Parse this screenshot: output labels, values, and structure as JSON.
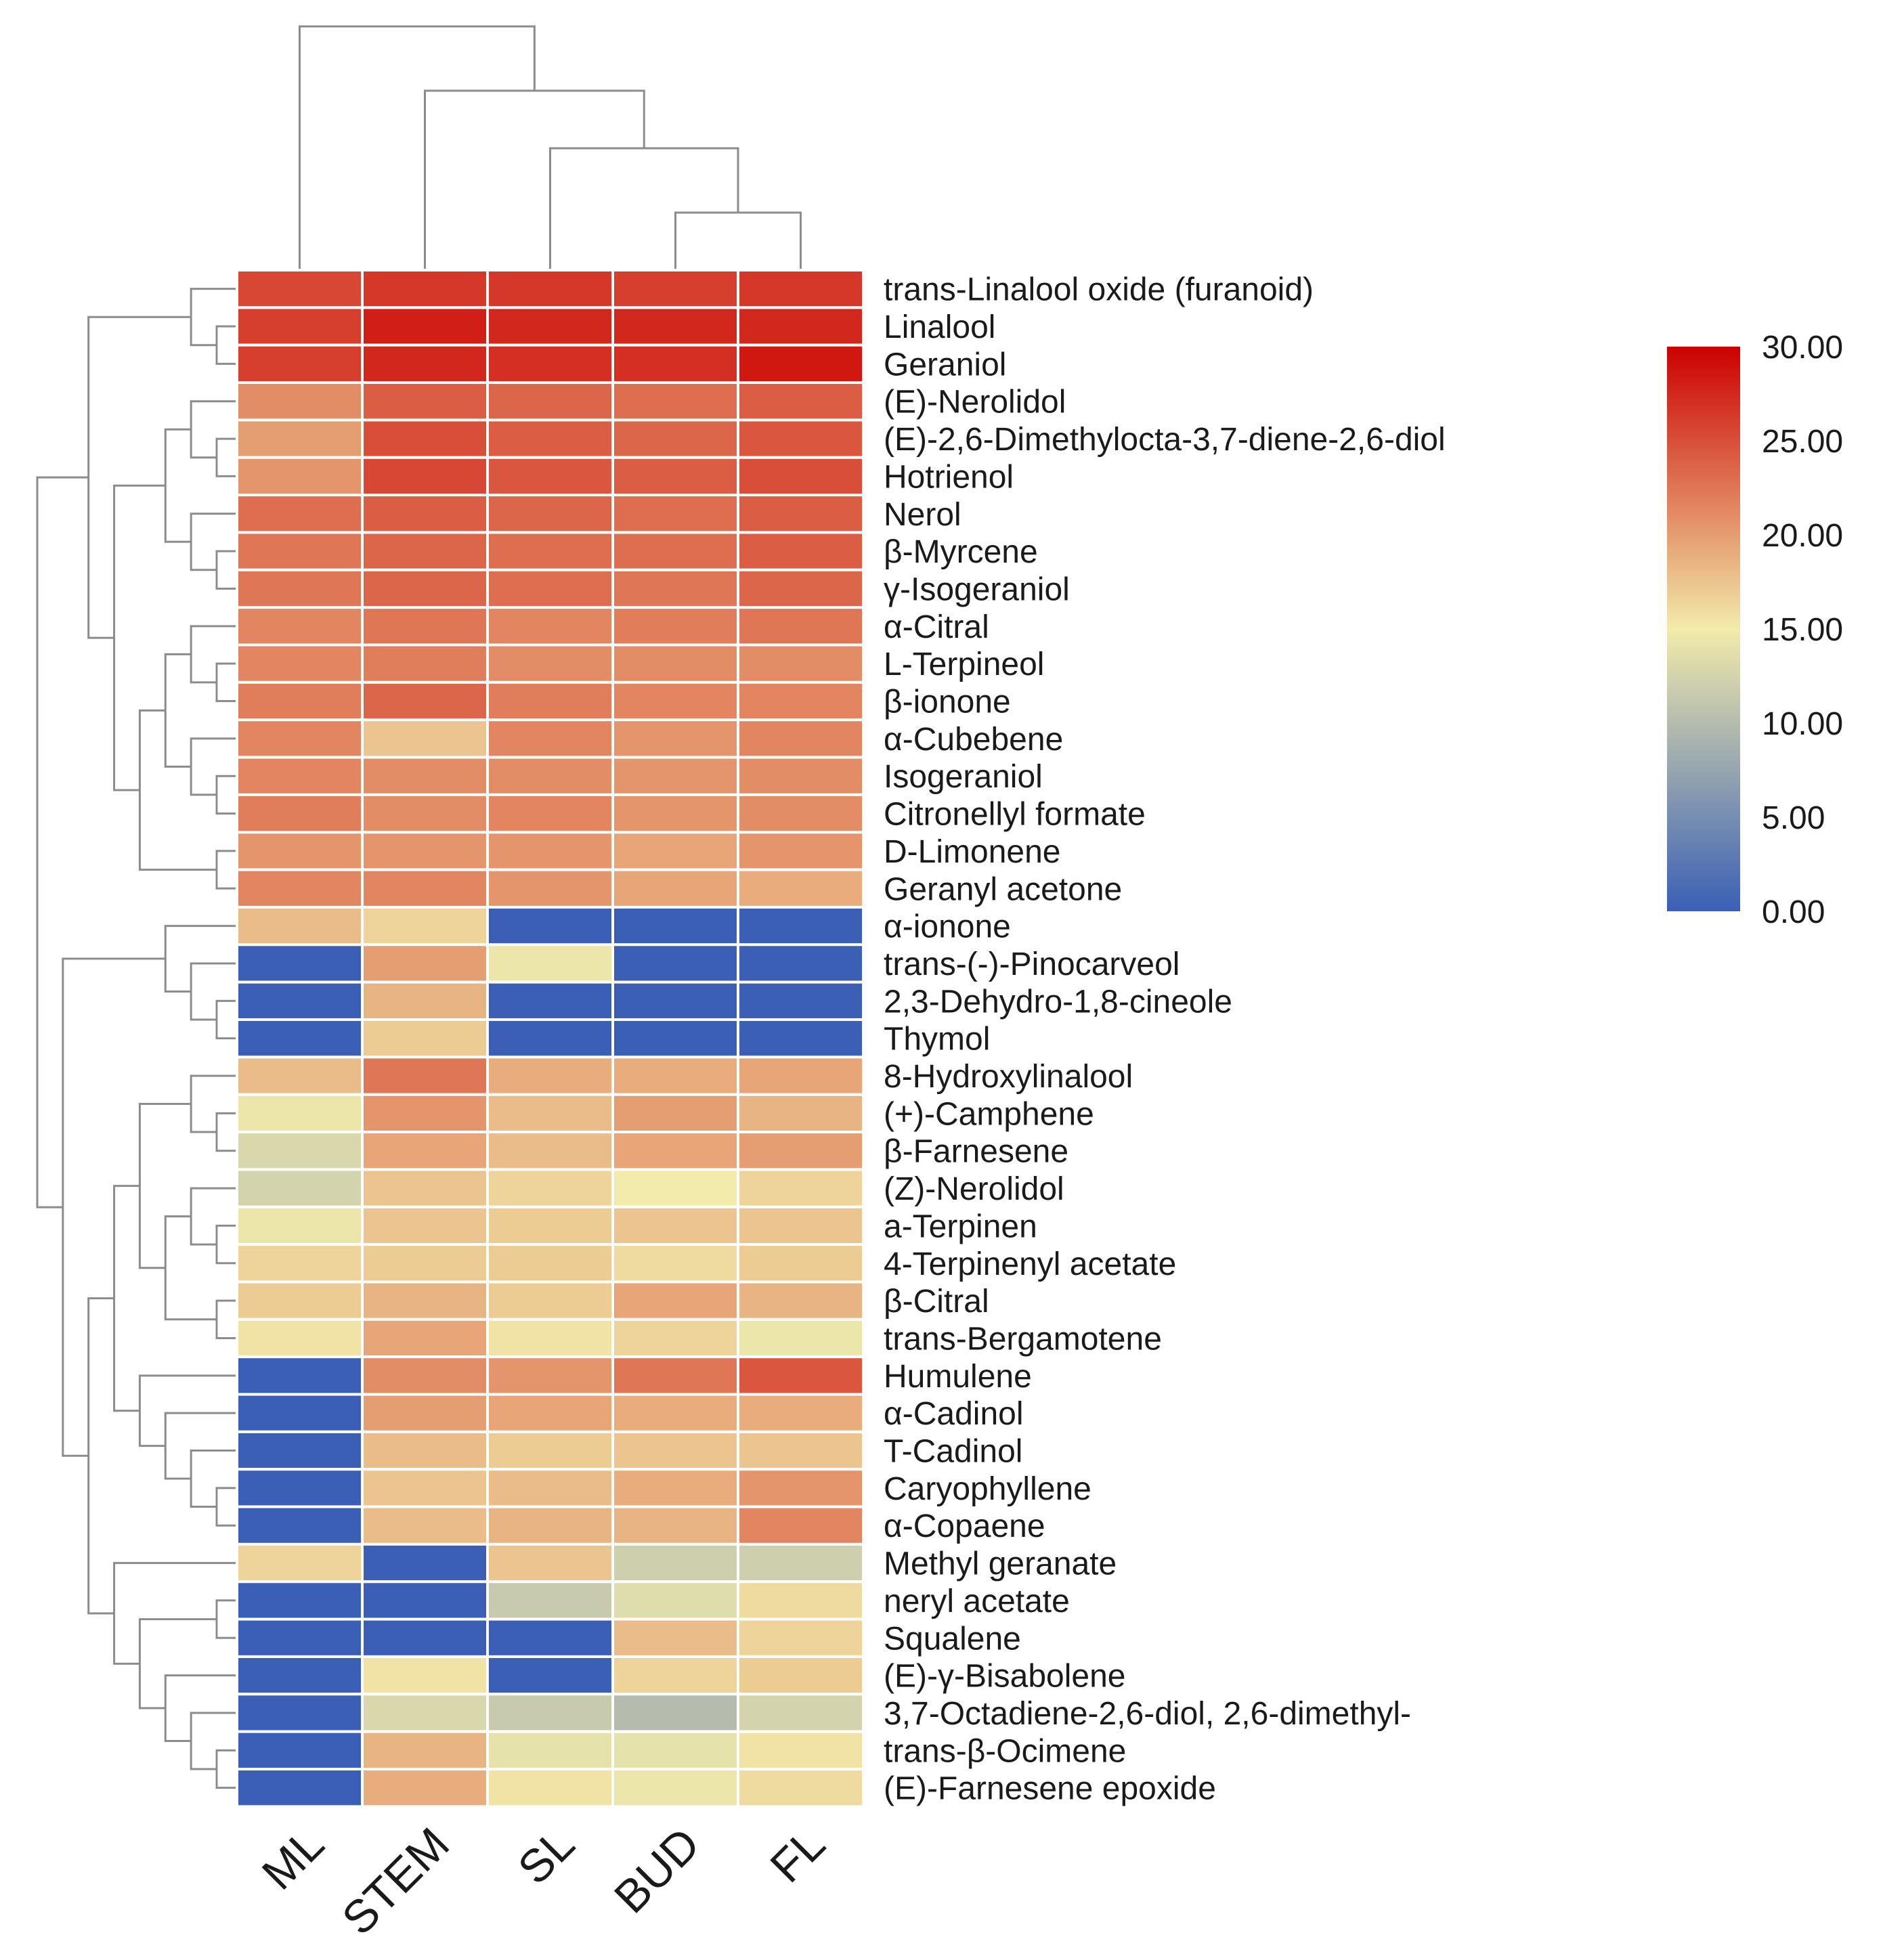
{
  "chart_data": {
    "type": "heatmap",
    "title": "",
    "columns": [
      "ML",
      "STEM",
      "SL",
      "BUD",
      "FL"
    ],
    "rows": [
      "trans-Linalool oxide (furanoid)",
      "Linalool",
      "Geraniol",
      "(E)-Nerolidol",
      "(E)-2,6-Dimethylocta-3,7-diene-2,6-diol",
      "Hotrienol",
      "Nerol",
      "β-Myrcene",
      "γ-Isogeraniol",
      "α-Citral",
      "L-Terpineol",
      "β-ionone",
      "α-Cubebene",
      "Isogeraniol",
      "Citronellyl formate",
      "D-Limonene",
      "Geranyl acetone",
      "α-ionone",
      "trans-(-)-Pinocarveol",
      "2,3-Dehydro-1,8-cineole",
      "Thymol",
      "8-Hydroxylinalool",
      "(+)-Camphene",
      "β-Farnesene",
      "(Z)-Nerolidol",
      "a-Terpinen",
      "4-Terpinenyl acetate",
      "β-Citral",
      "trans-Bergamotene",
      "Humulene",
      "α-Cadinol",
      "T-Cadinol",
      "Caryophyllene",
      "α-Copaene",
      "Methyl geranate",
      "neryl acetate",
      "Squalene",
      "(E)-γ-Bisabolene",
      "3,7-Octadiene-2,6-diol, 2,6-dimethyl-",
      "trans-β-Ocimene",
      "(E)-Farnesene epoxide"
    ],
    "values": [
      [
        25.5,
        26.5,
        26.5,
        26,
        26.5
      ],
      [
        26,
        28,
        27.5,
        27.5,
        27.5
      ],
      [
        26,
        27.5,
        27,
        27,
        28.5
      ],
      [
        21,
        24,
        23.5,
        23,
        24
      ],
      [
        20,
        25,
        24,
        23.5,
        24.5
      ],
      [
        20.5,
        25.5,
        24.5,
        24,
        25
      ],
      [
        23,
        24,
        23.5,
        23,
        24
      ],
      [
        22.5,
        23.5,
        23,
        23,
        24
      ],
      [
        22.5,
        23.5,
        23,
        22.5,
        23.5
      ],
      [
        21.5,
        22.5,
        21.5,
        22,
        22.5
      ],
      [
        21.5,
        22,
        21,
        21,
        21
      ],
      [
        22,
        23.5,
        22,
        21.5,
        21.5
      ],
      [
        21.5,
        17.5,
        21.5,
        20.5,
        21.5
      ],
      [
        21.5,
        21,
        21,
        20.5,
        21
      ],
      [
        22,
        21,
        21.5,
        20.5,
        21
      ],
      [
        20.5,
        20.5,
        20.5,
        19.5,
        20.5
      ],
      [
        21.5,
        21.5,
        20.5,
        19.5,
        19
      ],
      [
        18,
        16.5,
        0,
        0,
        0
      ],
      [
        0,
        20,
        14.5,
        0,
        0
      ],
      [
        0,
        18.5,
        0,
        0,
        0
      ],
      [
        0,
        17,
        0,
        0,
        0
      ],
      [
        18,
        22.5,
        19,
        19,
        19.5
      ],
      [
        14.5,
        20.5,
        18,
        20,
        18.5
      ],
      [
        13,
        19.5,
        18,
        19.5,
        20
      ],
      [
        12.5,
        17.5,
        16.5,
        15,
        16.5
      ],
      [
        14.5,
        17.5,
        17,
        17.5,
        17.5
      ],
      [
        16.5,
        17,
        17,
        16,
        17
      ],
      [
        17,
        18.5,
        17,
        19.5,
        18.5
      ],
      [
        15.5,
        19.5,
        15.5,
        16.5,
        14.5
      ],
      [
        0,
        21,
        20.5,
        22.5,
        24.5
      ],
      [
        0,
        20,
        19.5,
        19,
        19
      ],
      [
        0,
        18,
        17,
        17.5,
        17.5
      ],
      [
        0,
        17.5,
        18,
        19,
        20.5
      ],
      [
        0,
        18,
        18.5,
        18.5,
        21.5
      ],
      [
        16.5,
        0,
        17.5,
        12,
        12
      ],
      [
        0,
        0,
        11.5,
        13.5,
        16
      ],
      [
        0,
        0,
        0,
        18,
        16.5
      ],
      [
        0,
        15.5,
        0,
        16.5,
        17
      ],
      [
        0,
        13,
        11.5,
        10,
        12.5
      ],
      [
        0,
        18.5,
        14,
        14,
        15.5
      ],
      [
        0,
        19,
        15.5,
        14.5,
        16
      ]
    ],
    "color_scale": {
      "min": 0,
      "max": 30,
      "stops": [
        "#3a5fb5",
        "#f2ebab",
        "#cc0000"
      ],
      "ticks": [
        "0.00",
        "5.00",
        "10.00",
        "15.00",
        "20.00",
        "25.00",
        "30.00"
      ]
    },
    "dendrograms": {
      "columns": "ML,((STEM),(SL,(BUD,FL)))",
      "rows": "hierarchical clustering of compounds"
    },
    "legend_placement": "right"
  }
}
